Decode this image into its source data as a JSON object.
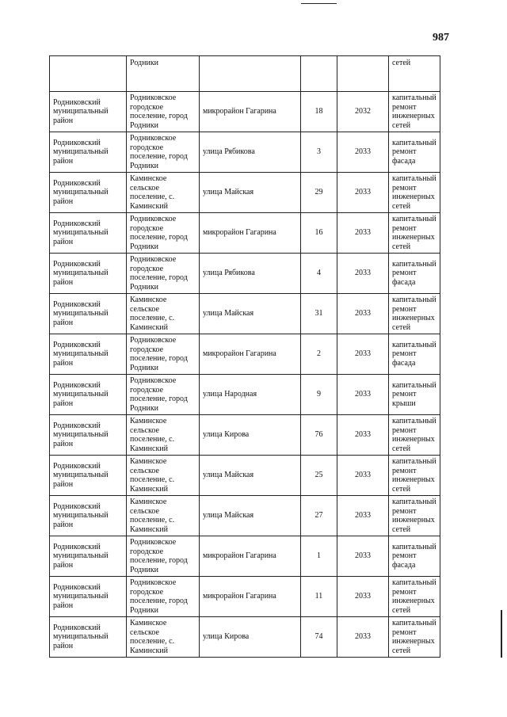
{
  "page_number": "987",
  "continuation_row": {
    "settlement": "Родники",
    "work": "сетей"
  },
  "rows": [
    {
      "district": "Родниковский муниципальный район",
      "settlement": "Родниковское городское поселение, город Родники",
      "street": "микрорайон Гагарина",
      "house": "18",
      "year": "2032",
      "work": "капитальный ремонт инженерных сетей"
    },
    {
      "district": "Родниковский муниципальный район",
      "settlement": "Родниковское городское поселение, город Родники",
      "street": "улица Рябикова",
      "house": "3",
      "year": "2033",
      "work": "капитальный ремонт фасада"
    },
    {
      "district": "Родниковский муниципальный район",
      "settlement": "Каминское сельское поселение, с. Каминский",
      "street": "улица Майская",
      "house": "29",
      "year": "2033",
      "work": "капитальный ремонт инженерных сетей"
    },
    {
      "district": "Родниковский муниципальный район",
      "settlement": "Родниковское городское поселение, город Родники",
      "street": "микрорайон Гагарина",
      "house": "16",
      "year": "2033",
      "work": "капитальный ремонт инженерных сетей"
    },
    {
      "district": "Родниковский муниципальный район",
      "settlement": "Родниковское городское поселение, город Родники",
      "street": "улица Рябикова",
      "house": "4",
      "year": "2033",
      "work": "капитальный ремонт фасада"
    },
    {
      "district": "Родниковский муниципальный район",
      "settlement": "Каминское сельское поселение, с. Каминский",
      "street": "улица Майская",
      "house": "31",
      "year": "2033",
      "work": "капитальный ремонт инженерных сетей"
    },
    {
      "district": "Родниковский муниципальный район",
      "settlement": "Родниковское городское поселение, город Родники",
      "street": "микрорайон Гагарина",
      "house": "2",
      "year": "2033",
      "work": "капитальный ремонт фасада"
    },
    {
      "district": "Родниковский муниципальный район",
      "settlement": "Родниковское городское поселение, город Родники",
      "street": "улица Народная",
      "house": "9",
      "year": "2033",
      "work": "капитальный ремонт крыши"
    },
    {
      "district": "Родниковский муниципальный район",
      "settlement": "Каминское сельское поселение, с. Каминский",
      "street": "улица Кирова",
      "house": "76",
      "year": "2033",
      "work": "капитальный ремонт инженерных сетей"
    },
    {
      "district": "Родниковский муниципальный район",
      "settlement": "Каминское сельское поселение, с. Каминский",
      "street": "улица Майская",
      "house": "25",
      "year": "2033",
      "work": "капитальный ремонт инженерных сетей"
    },
    {
      "district": "Родниковский муниципальный район",
      "settlement": "Каминское сельское поселение, с. Каминский",
      "street": "улица Майская",
      "house": "27",
      "year": "2033",
      "work": "капитальный ремонт инженерных сетей"
    },
    {
      "district": "Родниковский муниципальный район",
      "settlement": "Родниковское городское поселение, город Родники",
      "street": "микрорайон Гагарина",
      "house": "1",
      "year": "2033",
      "work": "капитальный ремонт фасада"
    },
    {
      "district": "Родниковский муниципальный район",
      "settlement": "Родниковское городское поселение, город Родники",
      "street": "микрорайон Гагарина",
      "house": "11",
      "year": "2033",
      "work": "капитальный ремонт инженерных сетей"
    },
    {
      "district": "Родниковский муниципальный район",
      "settlement": "Каминское сельское поселение, с. Каминский",
      "street": "улица Кирова",
      "house": "74",
      "year": "2033",
      "work": "капитальный ремонт инженерных сетей"
    }
  ]
}
